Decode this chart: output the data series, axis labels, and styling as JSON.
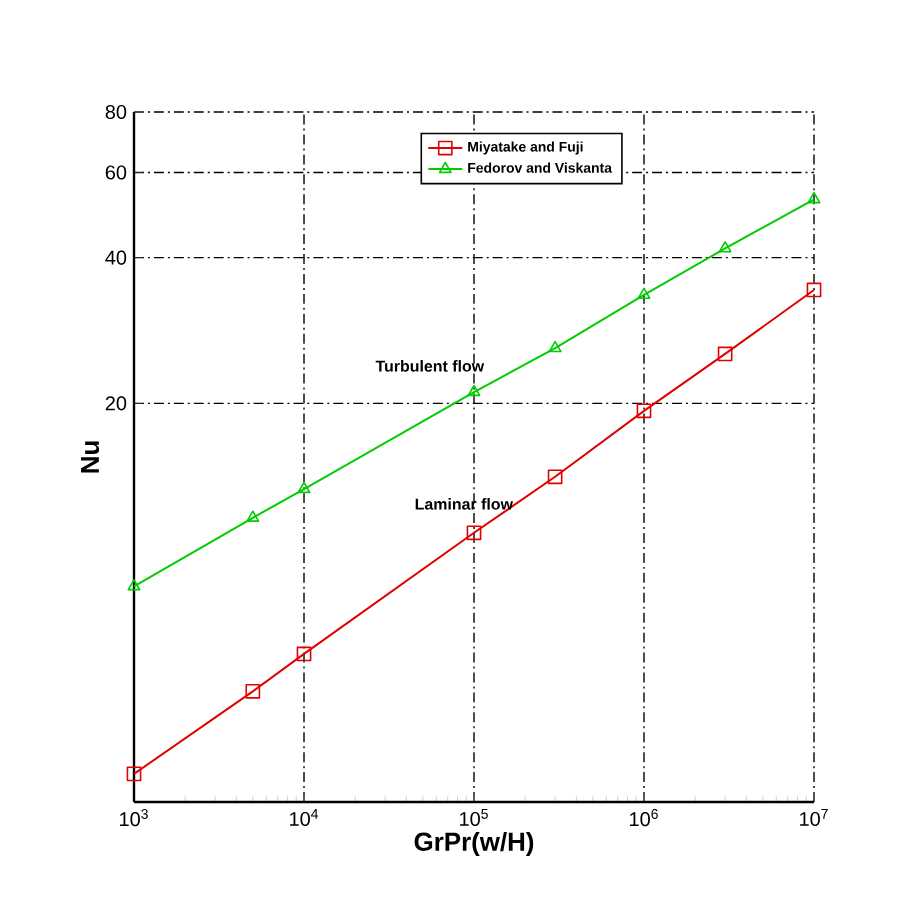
{
  "chart_data": {
    "type": "line",
    "xlabel": "GrPr(w/H)",
    "ylabel": "Nu",
    "log": "xy",
    "grid": true,
    "legend": "top",
    "xlim": [
      1000,
      10000000
    ],
    "ylim": [
      3,
      80
    ],
    "xticks": [
      {
        "value": 1000,
        "label": "10$^{3}$"
      },
      {
        "value": 10000,
        "label": "10$^{4}$"
      },
      {
        "value": 100000,
        "label": "10$^{5}$"
      },
      {
        "value": 1000000,
        "label": "10$^{6}$"
      },
      {
        "value": 10000000,
        "label": "10$^{7}$"
      }
    ],
    "yticks": [
      20,
      40,
      60,
      80
    ],
    "annotations": [
      "Turbulent flow",
      "Laminar flow"
    ],
    "series": [
      {
        "name": "Miyatake and Fuji",
        "color": "#e00000",
        "marker": "square",
        "x": [
          1000,
          5000,
          10000,
          100000,
          300000,
          1000000,
          3000000,
          10000000
        ],
        "values": [
          3.43,
          5.08,
          6.07,
          10.8,
          14.1,
          19.3,
          25.3,
          34.3
        ]
      },
      {
        "name": "Fedorov and Viskanta",
        "color": "#00cc00",
        "marker": "triangle",
        "x": [
          1000,
          5000,
          10000,
          100000,
          300000,
          1000000,
          3000000,
          10000000
        ],
        "values": [
          8.37,
          11.6,
          13.3,
          21.1,
          26.0,
          33.5,
          41.8,
          52.8
        ]
      }
    ]
  }
}
